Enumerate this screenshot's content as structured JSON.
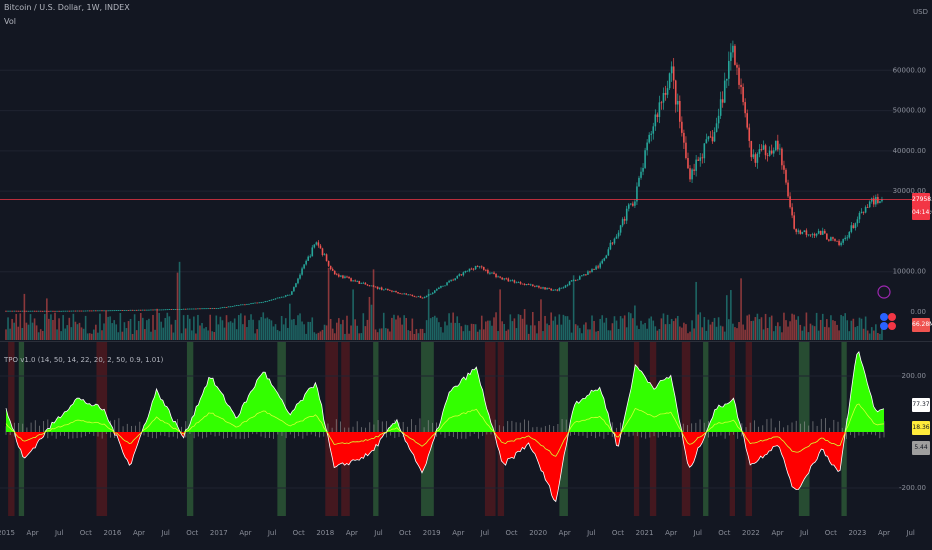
{
  "header": {
    "symbol": "Bitcoin / U.S. Dollar, 1W, INDEX",
    "vol_label": "Vol",
    "indicator_label": "TPO v1.0 (14, 50, 14, 22, 20, 2, 50, 0.9, 1.01)"
  },
  "price_axis": {
    "currency": "USD",
    "ticks": [
      "60000.00",
      "50000.00",
      "40000.00",
      "30000.00",
      "10000.00",
      "0.00"
    ],
    "last_price": "27958.57",
    "price_countdown": "04:14:02",
    "volume_badge": "66.28M"
  },
  "osc_axis": {
    "ticks": [
      "200.00",
      "-200.00"
    ],
    "badges": [
      {
        "text": "77.37",
        "color": "#ffffff"
      },
      {
        "text": "18.36",
        "color": "#ffeb3b"
      },
      {
        "text": "5.44",
        "color": "#9e9e9e"
      }
    ]
  },
  "time_axis": {
    "labels": [
      "2015",
      "Apr",
      "Jul",
      "Oct",
      "2016",
      "Apr",
      "Jul",
      "Oct",
      "2017",
      "Apr",
      "Jul",
      "Oct",
      "2018",
      "Apr",
      "Jul",
      "Oct",
      "2019",
      "Apr",
      "Jul",
      "Oct",
      "2020",
      "Apr",
      "Jul",
      "Oct",
      "2021",
      "Apr",
      "Jul",
      "Oct",
      "2022",
      "Apr",
      "Jul",
      "Oct",
      "2023",
      "Apr",
      "Jul"
    ]
  },
  "colors": {
    "background": "#131722",
    "up": "#26a69a",
    "down": "#ef5350",
    "osc_pos": "#33ff00",
    "osc_neg": "#ff0000",
    "signal_line": "#d4ff33",
    "hist": "#9e9e9e",
    "buy_zone": "#4caf50",
    "sell_zone": "#b71c1c",
    "price_line": "#f23645"
  },
  "chart_data": [
    {
      "type": "candlestick",
      "title": "Bitcoin / U.S. Dollar, 1W, INDEX",
      "x_range": [
        "2015-01",
        "2023-03"
      ],
      "ylim": [
        0,
        70000
      ],
      "close_points": [
        {
          "x": "2015-01",
          "y": 300
        },
        {
          "x": "2015-07",
          "y": 280
        },
        {
          "x": "2016-01",
          "y": 420
        },
        {
          "x": "2016-07",
          "y": 650
        },
        {
          "x": "2017-01",
          "y": 1000
        },
        {
          "x": "2017-06",
          "y": 2600
        },
        {
          "x": "2017-09",
          "y": 4300
        },
        {
          "x": "2017-12",
          "y": 17500
        },
        {
          "x": "2018-02",
          "y": 9500
        },
        {
          "x": "2018-06",
          "y": 6400
        },
        {
          "x": "2018-12",
          "y": 3500
        },
        {
          "x": "2019-06",
          "y": 11500
        },
        {
          "x": "2019-09",
          "y": 8200
        },
        {
          "x": "2020-03",
          "y": 5300
        },
        {
          "x": "2020-08",
          "y": 11600
        },
        {
          "x": "2020-12",
          "y": 29000
        },
        {
          "x": "2021-02",
          "y": 47000
        },
        {
          "x": "2021-04",
          "y": 60000
        },
        {
          "x": "2021-06",
          "y": 34000
        },
        {
          "x": "2021-09",
          "y": 45000
        },
        {
          "x": "2021-11",
          "y": 67000
        },
        {
          "x": "2022-01",
          "y": 38000
        },
        {
          "x": "2022-04",
          "y": 42000
        },
        {
          "x": "2022-06",
          "y": 20000
        },
        {
          "x": "2022-09",
          "y": 19500
        },
        {
          "x": "2022-11",
          "y": 16500
        },
        {
          "x": "2023-01",
          "y": 23000
        },
        {
          "x": "2023-03",
          "y": 27958.57
        }
      ],
      "last_price": 27958.57
    },
    {
      "type": "area",
      "title": "TPO v1.0 (14, 50, 14, 22, 20, 2, 50, 0.9, 1.01)",
      "ylim": [
        -300,
        300
      ],
      "series": [
        {
          "values": [
            {
              "x": "2015-01",
              "y": 80
            },
            {
              "x": "2015-03",
              "y": -100
            },
            {
              "x": "2015-06",
              "y": 20
            },
            {
              "x": "2015-09",
              "y": 120
            },
            {
              "x": "2015-12",
              "y": 80
            },
            {
              "x": "2016-03",
              "y": -120
            },
            {
              "x": "2016-06",
              "y": 150
            },
            {
              "x": "2016-09",
              "y": -20
            },
            {
              "x": "2016-12",
              "y": 200
            },
            {
              "x": "2017-03",
              "y": 50
            },
            {
              "x": "2017-06",
              "y": 220
            },
            {
              "x": "2017-09",
              "y": 60
            },
            {
              "x": "2017-12",
              "y": 180
            },
            {
              "x": "2018-02",
              "y": -130
            },
            {
              "x": "2018-06",
              "y": -80
            },
            {
              "x": "2018-09",
              "y": 40
            },
            {
              "x": "2018-12",
              "y": -150
            },
            {
              "x": "2019-03",
              "y": 140
            },
            {
              "x": "2019-06",
              "y": 230
            },
            {
              "x": "2019-09",
              "y": -120
            },
            {
              "x": "2019-12",
              "y": -40
            },
            {
              "x": "2020-03",
              "y": -250
            },
            {
              "x": "2020-05",
              "y": 100
            },
            {
              "x": "2020-08",
              "y": 160
            },
            {
              "x": "2020-10",
              "y": -60
            },
            {
              "x": "2020-12",
              "y": 240
            },
            {
              "x": "2021-02",
              "y": 160
            },
            {
              "x": "2021-04",
              "y": 200
            },
            {
              "x": "2021-06",
              "y": -140
            },
            {
              "x": "2021-09",
              "y": 80
            },
            {
              "x": "2021-11",
              "y": 120
            },
            {
              "x": "2022-01",
              "y": -120
            },
            {
              "x": "2022-04",
              "y": -40
            },
            {
              "x": "2022-06",
              "y": -220
            },
            {
              "x": "2022-09",
              "y": -60
            },
            {
              "x": "2022-11",
              "y": -150
            },
            {
              "x": "2023-01",
              "y": 300
            },
            {
              "x": "2023-03",
              "y": 77.37
            }
          ]
        }
      ],
      "last_values": [
        77.37,
        18.36,
        5.44
      ]
    }
  ]
}
